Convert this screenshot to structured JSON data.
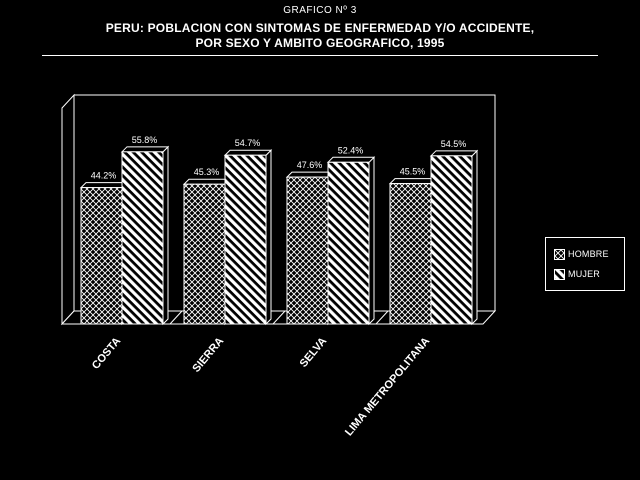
{
  "header": {
    "subtitle": "GRAFICO Nº 3",
    "title_line1": "PERU: POBLACION CON SINTOMAS DE ENFERMEDAD Y/O ACCIDENTE,",
    "title_line2": "POR SEXO Y AMBITO GEOGRAFICO, 1995"
  },
  "chart_data": {
    "type": "bar",
    "categories": [
      "COSTA",
      "SIERRA",
      "SELVA",
      "LIMA METROPOLITANA"
    ],
    "series": [
      {
        "name": "HOMBRE",
        "values": [
          44.2,
          45.3,
          47.6,
          45.5
        ],
        "labels": [
          "44.2%",
          "45.3%",
          "47.6%",
          "45.5%"
        ],
        "pattern": "crosshatch"
      },
      {
        "name": "MUJER",
        "values": [
          55.8,
          54.7,
          52.4,
          54.5
        ],
        "labels": [
          "55.8%",
          "54.7%",
          "52.4%",
          "54.5%"
        ],
        "pattern": "diagonal"
      }
    ],
    "ylim": [
      0,
      70
    ],
    "grid": false,
    "legend_position": "right",
    "three_d": true,
    "colors": {
      "background": "#000000",
      "foreground": "#ffffff"
    }
  }
}
